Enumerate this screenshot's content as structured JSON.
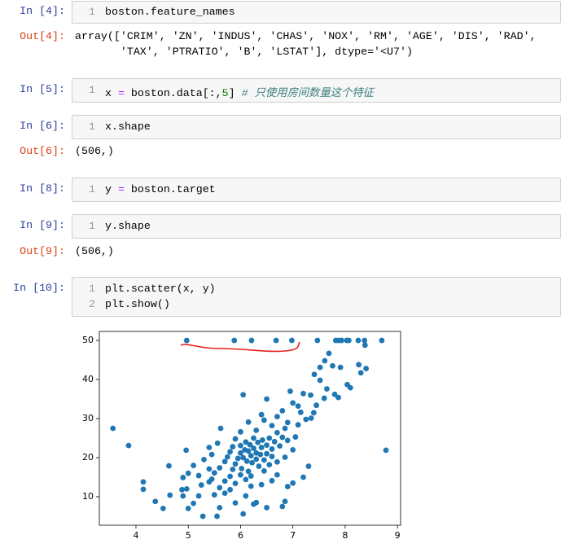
{
  "cells": [
    {
      "prompt": "In [4]:",
      "lines": [
        {
          "n": "1",
          "parts": [
            "boston.feature_names"
          ]
        }
      ],
      "out_prompt": "Out[4]:",
      "output": [
        "array(['CRIM', 'ZN', 'INDUS', 'CHAS', 'NOX', 'RM', 'AGE', 'DIS', 'RAD',",
        "       'TAX', 'PTRATIO', 'B', 'LSTAT'], dtype='<U7')"
      ]
    },
    {
      "prompt": "In [5]:",
      "lines": [
        {
          "n": "1",
          "parts": [
            "x ",
            "=",
            " boston.data[:,",
            "5",
            "] ",
            "# 只使用房间数量这个特征"
          ]
        }
      ]
    },
    {
      "prompt": "In [6]:",
      "lines": [
        {
          "n": "1",
          "parts": [
            "x.shape"
          ]
        }
      ],
      "out_prompt": "Out[6]:",
      "output": [
        "(506,)"
      ]
    },
    {
      "prompt": "In [8]:",
      "lines": [
        {
          "n": "1",
          "parts": [
            "y ",
            "=",
            " boston.target"
          ]
        }
      ]
    },
    {
      "prompt": "In [9]:",
      "lines": [
        {
          "n": "1",
          "parts": [
            "y.shape"
          ]
        }
      ],
      "out_prompt": "Out[9]:",
      "output": [
        "(506,)"
      ]
    },
    {
      "prompt": "In [10]:",
      "lines": [
        {
          "n": "1",
          "parts": [
            "plt.scatter(x, y)"
          ]
        },
        {
          "n": "2",
          "parts": [
            "plt.show()"
          ]
        }
      ]
    }
  ],
  "chart_data": {
    "type": "scatter",
    "color": "#1f77b4",
    "x": [
      3.56,
      3.86,
      4.14,
      4.14,
      4.37,
      4.52,
      4.63,
      4.65,
      4.88,
      4.9,
      4.96,
      4.97,
      5.88,
      6.21,
      6.68,
      6.98,
      7.47,
      7.82,
      7.87,
      7.93,
      8.03,
      8.07,
      8.25,
      8.37,
      8.7,
      8.78,
      8.38,
      8.3,
      8.26,
      8.4,
      8.04,
      7.61,
      7.69,
      7.76,
      7.91,
      7.52,
      7.34,
      7.41,
      7.52,
      7.65,
      7.2,
      7.1,
      6.95,
      7.0,
      6.8,
      6.5,
      6.9,
      6.05,
      7.87,
      7.45,
      7.35,
      7.15,
      6.7,
      6.6,
      6.45,
      6.3,
      5.62,
      5.56,
      5.4,
      5.0,
      5.1,
      5.0,
      5.1,
      5.28,
      5.55,
      5.6,
      4.97,
      5.2,
      5.4,
      5.45,
      6.05,
      6.3,
      6.5,
      6.8,
      6.85,
      7.2,
      7.3,
      7.0,
      6.9,
      5.7,
      5.8,
      5.9,
      5.9,
      6.1,
      6.2,
      6.4,
      6.6,
      6.7,
      5.8,
      5.7,
      5.5,
      5.6,
      5.7,
      5.75,
      5.8,
      5.85,
      5.9,
      5.95,
      6.0,
      6.0,
      6.02,
      6.05,
      6.08,
      6.1,
      6.12,
      6.15,
      6.15,
      6.18,
      6.2,
      6.22,
      6.25,
      6.25,
      6.3,
      6.3,
      6.33,
      6.35,
      6.38,
      6.4,
      6.42,
      6.45,
      6.5,
      6.5,
      6.55,
      6.6,
      6.6,
      6.65,
      6.7,
      6.75,
      6.8,
      6.85,
      6.9,
      5.9,
      5.85,
      6.0,
      6.1,
      6.2,
      6.45,
      6.55,
      6.7,
      6.85,
      7.0,
      7.05,
      7.1,
      7.25,
      7.4,
      7.6,
      7.8,
      8.1,
      5.3,
      5.4,
      5.45,
      5.5,
      5.6,
      4.9,
      5.2,
      5.25,
      6.0,
      6.15,
      6.4,
      6.25
    ],
    "y": [
      27.5,
      23.1,
      13.8,
      11.9,
      8.8,
      7.0,
      17.9,
      10.4,
      11.8,
      10.2,
      21.9,
      50,
      50,
      50,
      50,
      50,
      50,
      50,
      50,
      50,
      50,
      50,
      50,
      50,
      50,
      21.9,
      48.8,
      41.7,
      43.8,
      42.8,
      38.7,
      44.8,
      46.7,
      43.5,
      43.1,
      43.1,
      36.0,
      41.3,
      39.8,
      37.6,
      36.4,
      33.2,
      37.0,
      34.0,
      32.0,
      35.0,
      29.0,
      36.1,
      35.4,
      33.4,
      30.1,
      31.6,
      30.5,
      28.2,
      29.6,
      27.0,
      27.5,
      23.7,
      22.6,
      16.0,
      18.0,
      7.0,
      8.3,
      5.0,
      5.0,
      7.2,
      12.0,
      10.2,
      13.8,
      14.5,
      5.6,
      8.5,
      7.2,
      7.5,
      8.8,
      15.0,
      17.8,
      13.5,
      12.6,
      10.9,
      11.8,
      13.4,
      8.4,
      10.2,
      12.7,
      13.1,
      14.1,
      15.6,
      15.2,
      14.0,
      16.1,
      17.4,
      19.0,
      20.2,
      21.5,
      22.8,
      18.4,
      19.8,
      21.2,
      23.1,
      17.2,
      20.0,
      22.0,
      24.0,
      19.1,
      21.7,
      16.5,
      23.3,
      20.5,
      18.7,
      22.4,
      25.0,
      19.6,
      21.2,
      23.9,
      17.8,
      20.8,
      22.6,
      24.5,
      19.4,
      21.0,
      23.2,
      25.0,
      20.3,
      22.2,
      24.1,
      26.4,
      23.0,
      25.2,
      27.5,
      24.4,
      24.8,
      17.0,
      15.6,
      14.4,
      15.3,
      16.6,
      18.2,
      18.9,
      20.1,
      22.0,
      25.3,
      28.4,
      29.8,
      31.5,
      35.2,
      36.2,
      37.9,
      19.5,
      17.1,
      20.8,
      10.5,
      12.3,
      14.9,
      15.4,
      13.0,
      26.6,
      29.1,
      31.0,
      8.1
    ],
    "xlim": [
      3.3,
      9.06
    ],
    "ylim": [
      2.7,
      52.3
    ],
    "xticks": [
      4,
      5,
      6,
      7,
      8,
      9
    ],
    "yticks": [
      10,
      20,
      30,
      40,
      50
    ]
  }
}
